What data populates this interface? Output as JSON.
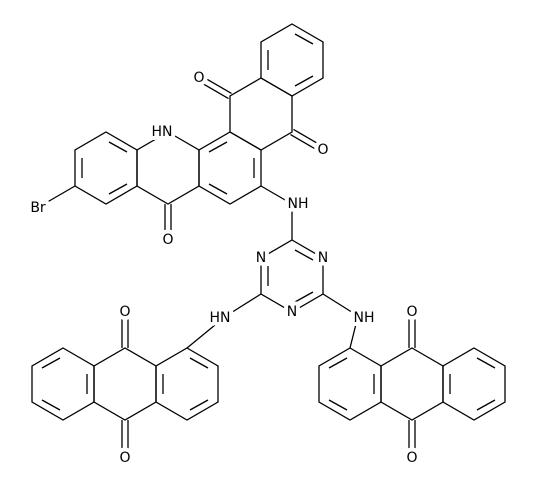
{
  "atoms": [
    {
      "label": "O"
    },
    {
      "label": "O"
    },
    {
      "label": "HN"
    },
    {
      "label": "Br"
    },
    {
      "label": "O"
    },
    {
      "label": "NH"
    },
    {
      "label": "N"
    },
    {
      "label": "N"
    },
    {
      "label": "N"
    },
    {
      "label": "HN"
    },
    {
      "label": "NH"
    },
    {
      "label": "O"
    },
    {
      "label": "O"
    },
    {
      "label": "O"
    },
    {
      "label": "O"
    }
  ]
}
